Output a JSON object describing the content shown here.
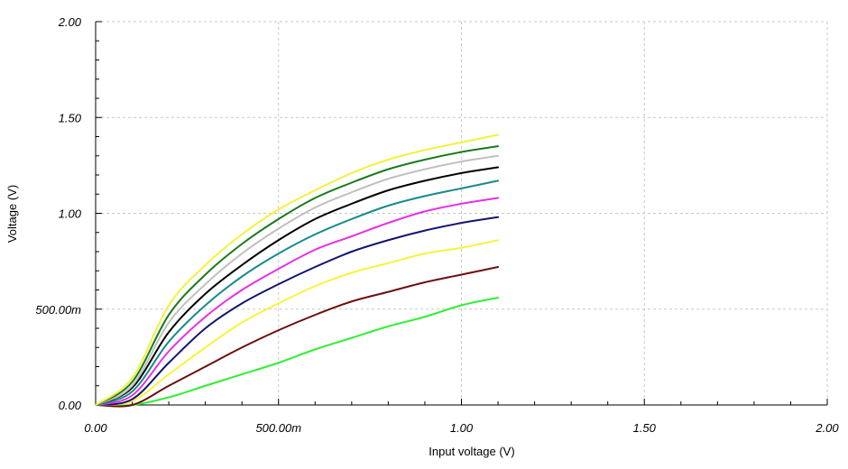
{
  "chart_data": {
    "type": "line",
    "xlabel": "Input voltage (V)",
    "ylabel": "Voltage (V)",
    "xlim": [
      0,
      2
    ],
    "ylim": [
      0,
      2
    ],
    "x_ticks": [
      0,
      0.5,
      1.0,
      1.5,
      2.0
    ],
    "x_tick_labels": [
      "0.00",
      "500.00m",
      "1.00",
      "1.50",
      "2.00"
    ],
    "y_ticks": [
      0,
      0.5,
      1.0,
      1.5,
      2.0
    ],
    "y_tick_labels": [
      "0.00",
      "500.00m",
      "1.00",
      "1.50",
      "2.00"
    ],
    "grid": true,
    "legend": "none",
    "x": [
      0,
      0.1,
      0.2,
      0.3,
      0.4,
      0.5,
      0.6,
      0.7,
      0.8,
      0.9,
      1.0,
      1.1
    ],
    "series": [
      {
        "color": "#33ee33",
        "values": [
          0.0,
          0.0,
          0.04,
          0.1,
          0.16,
          0.22,
          0.29,
          0.35,
          0.41,
          0.46,
          0.52,
          0.56
        ]
      },
      {
        "color": "#6b0f0f",
        "values": [
          0.0,
          0.0,
          0.1,
          0.2,
          0.3,
          0.39,
          0.47,
          0.54,
          0.59,
          0.64,
          0.68,
          0.72
        ]
      },
      {
        "color": "#f7f43c",
        "values": [
          0.0,
          0.02,
          0.16,
          0.3,
          0.43,
          0.53,
          0.62,
          0.69,
          0.74,
          0.79,
          0.82,
          0.86
        ]
      },
      {
        "color": "#141470",
        "values": [
          0.0,
          0.03,
          0.22,
          0.4,
          0.53,
          0.63,
          0.72,
          0.8,
          0.86,
          0.91,
          0.95,
          0.98
        ]
      },
      {
        "color": "#e630e6",
        "values": [
          0.0,
          0.05,
          0.28,
          0.46,
          0.6,
          0.71,
          0.81,
          0.88,
          0.95,
          1.01,
          1.05,
          1.08
        ]
      },
      {
        "color": "#178a8a",
        "values": [
          0.0,
          0.07,
          0.33,
          0.52,
          0.67,
          0.79,
          0.89,
          0.97,
          1.04,
          1.09,
          1.13,
          1.17
        ]
      },
      {
        "color": "#000000",
        "values": [
          0.0,
          0.09,
          0.38,
          0.58,
          0.73,
          0.86,
          0.97,
          1.05,
          1.12,
          1.17,
          1.21,
          1.24
        ]
      },
      {
        "color": "#c0c0c0",
        "values": [
          0.0,
          0.1,
          0.43,
          0.63,
          0.79,
          0.92,
          1.03,
          1.11,
          1.18,
          1.23,
          1.27,
          1.3
        ]
      },
      {
        "color": "#1a7a1a",
        "values": [
          0.0,
          0.12,
          0.47,
          0.68,
          0.84,
          0.97,
          1.08,
          1.16,
          1.23,
          1.28,
          1.32,
          1.35
        ]
      },
      {
        "color": "#f2f23a",
        "values": [
          0.0,
          0.14,
          0.52,
          0.73,
          0.89,
          1.02,
          1.12,
          1.21,
          1.28,
          1.33,
          1.37,
          1.41
        ]
      }
    ]
  }
}
